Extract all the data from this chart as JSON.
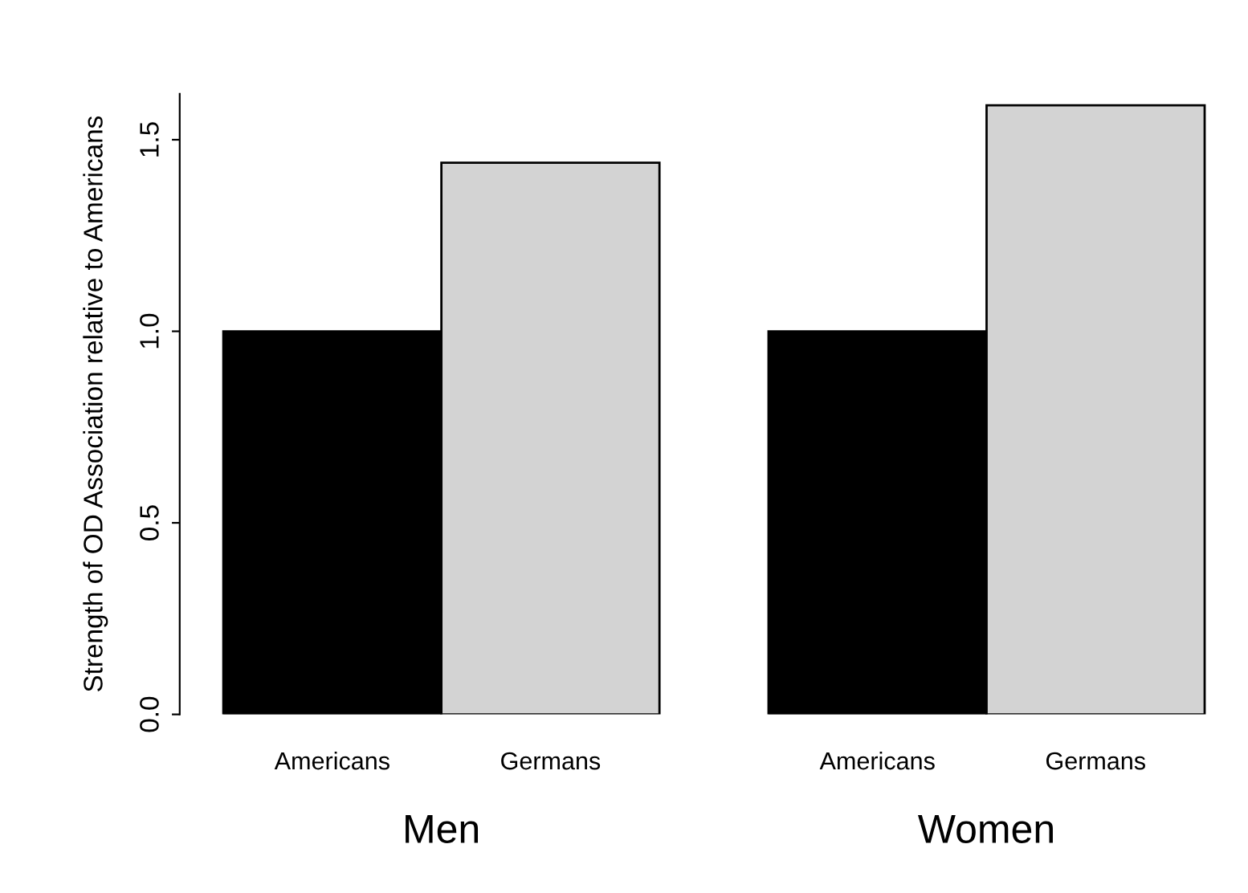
{
  "chart_data": {
    "type": "bar",
    "ylabel": "Strength of OD Association relative to Americans",
    "categories": [
      "Men",
      "Women"
    ],
    "series": [
      {
        "name": "Americans",
        "color": "#000000",
        "values": [
          1.0,
          1.0
        ]
      },
      {
        "name": "Germans",
        "color": "#d3d3d3",
        "values": [
          1.44,
          1.59
        ]
      }
    ],
    "ylim": [
      0,
      1.62
    ],
    "yticks": [
      {
        "value": 0,
        "label": "0.0"
      },
      {
        "value": 0.5,
        "label": "0.5"
      },
      {
        "value": 1,
        "label": "1.0"
      },
      {
        "value": 1.5,
        "label": "1.5"
      }
    ],
    "grid": false,
    "legend": false
  }
}
